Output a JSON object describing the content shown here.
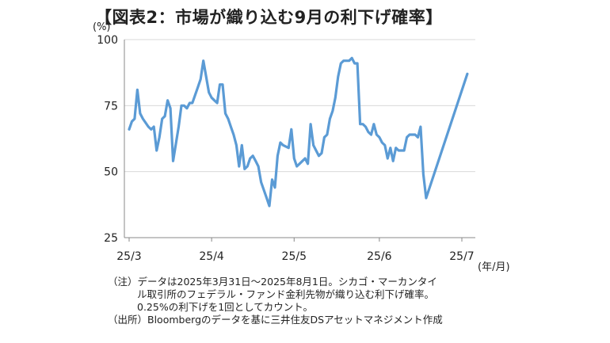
{
  "chart_data": {
    "type": "line",
    "title": "【図表2：市場が織り込む9月の利下げ確率】",
    "ylabel": "(%)",
    "xunit": "(年/月)",
    "ylim": [
      25,
      100
    ],
    "yticks": [
      25,
      50,
      75,
      100
    ],
    "x_tick_labels": [
      "25/3",
      "25/4",
      "25/5",
      "25/6",
      "25/7"
    ],
    "x_tick_dates": [
      "2025-03-31",
      "2025-04-30",
      "2025-05-30",
      "2025-06-30",
      "2025-07-30"
    ],
    "grid": "horizontal",
    "line_color": "#5b9bd5",
    "series": [
      {
        "name": "",
        "points": [
          [
            "2025-03-31",
            66
          ],
          [
            "2025-04-01",
            69
          ],
          [
            "2025-04-02",
            70
          ],
          [
            "2025-04-03",
            81
          ],
          [
            "2025-04-04",
            72
          ],
          [
            "2025-04-05",
            70
          ],
          [
            "2025-04-07",
            67
          ],
          [
            "2025-04-08",
            66
          ],
          [
            "2025-04-09",
            67
          ],
          [
            "2025-04-10",
            58
          ],
          [
            "2025-04-11",
            63
          ],
          [
            "2025-04-12",
            70
          ],
          [
            "2025-04-13",
            71
          ],
          [
            "2025-04-14",
            77
          ],
          [
            "2025-04-15",
            74
          ],
          [
            "2025-04-16",
            54
          ],
          [
            "2025-04-18",
            67
          ],
          [
            "2025-04-19",
            75
          ],
          [
            "2025-04-20",
            75
          ],
          [
            "2025-04-21",
            74
          ],
          [
            "2025-04-22",
            76
          ],
          [
            "2025-04-23",
            76
          ],
          [
            "2025-04-24",
            79
          ],
          [
            "2025-04-25",
            82
          ],
          [
            "2025-04-26",
            85
          ],
          [
            "2025-04-27",
            92
          ],
          [
            "2025-04-28",
            86
          ],
          [
            "2025-04-29",
            80
          ],
          [
            "2025-04-30",
            78
          ],
          [
            "2025-05-01",
            77
          ],
          [
            "2025-05-02",
            76
          ],
          [
            "2025-05-03",
            83
          ],
          [
            "2025-05-04",
            83
          ],
          [
            "2025-05-05",
            72
          ],
          [
            "2025-05-06",
            70
          ],
          [
            "2025-05-07",
            67
          ],
          [
            "2025-05-08",
            64
          ],
          [
            "2025-05-09",
            60
          ],
          [
            "2025-05-10",
            52
          ],
          [
            "2025-05-11",
            60
          ],
          [
            "2025-05-12",
            51
          ],
          [
            "2025-05-13",
            52
          ],
          [
            "2025-05-14",
            55
          ],
          [
            "2025-05-15",
            56
          ],
          [
            "2025-05-16",
            54
          ],
          [
            "2025-05-17",
            52
          ],
          [
            "2025-05-18",
            46
          ],
          [
            "2025-05-19",
            43
          ],
          [
            "2025-05-20",
            40
          ],
          [
            "2025-05-21",
            37
          ],
          [
            "2025-05-22",
            47
          ],
          [
            "2025-05-23",
            44
          ],
          [
            "2025-05-24",
            56
          ],
          [
            "2025-05-25",
            61
          ],
          [
            "2025-05-26",
            60
          ],
          [
            "2025-05-28",
            59
          ],
          [
            "2025-05-29",
            66
          ],
          [
            "2025-05-30",
            55
          ],
          [
            "2025-05-31",
            52
          ],
          [
            "2025-06-01",
            53
          ],
          [
            "2025-06-02",
            54
          ],
          [
            "2025-06-03",
            55
          ],
          [
            "2025-06-04",
            53
          ],
          [
            "2025-06-05",
            68
          ],
          [
            "2025-06-06",
            60
          ],
          [
            "2025-06-07",
            58
          ],
          [
            "2025-06-08",
            56
          ],
          [
            "2025-06-09",
            57
          ],
          [
            "2025-06-10",
            63
          ],
          [
            "2025-06-11",
            64
          ],
          [
            "2025-06-12",
            70
          ],
          [
            "2025-06-13",
            73
          ],
          [
            "2025-06-14",
            78
          ],
          [
            "2025-06-15",
            86
          ],
          [
            "2025-06-16",
            91
          ],
          [
            "2025-06-17",
            92
          ],
          [
            "2025-06-19",
            92
          ],
          [
            "2025-06-20",
            93
          ],
          [
            "2025-06-21",
            91
          ],
          [
            "2025-06-22",
            91
          ],
          [
            "2025-06-23",
            68
          ],
          [
            "2025-06-24",
            68
          ],
          [
            "2025-06-25",
            67
          ],
          [
            "2025-06-26",
            65
          ],
          [
            "2025-06-27",
            64
          ],
          [
            "2025-06-28",
            68
          ],
          [
            "2025-06-29",
            64
          ],
          [
            "2025-06-30",
            63
          ],
          [
            "2025-07-01",
            61
          ],
          [
            "2025-07-02",
            60
          ],
          [
            "2025-07-03",
            55
          ],
          [
            "2025-07-04",
            59
          ],
          [
            "2025-07-05",
            54
          ],
          [
            "2025-07-06",
            59
          ],
          [
            "2025-07-07",
            58
          ],
          [
            "2025-07-08",
            58
          ],
          [
            "2025-07-09",
            58
          ],
          [
            "2025-07-10",
            63
          ],
          [
            "2025-07-11",
            64
          ],
          [
            "2025-07-12",
            64
          ],
          [
            "2025-07-13",
            64
          ],
          [
            "2025-07-14",
            63
          ],
          [
            "2025-07-15",
            67
          ],
          [
            "2025-07-16",
            49
          ],
          [
            "2025-07-17",
            40
          ],
          [
            "2025-08-01",
            87
          ]
        ]
      }
    ]
  },
  "notes": {
    "line1": "（注）データは2025年3月31日～2025年8月1日。シカゴ・マーカンタイ",
    "line2": "ル取引所のフェデラル・ファンド金利先物が織り込む利下げ確率。",
    "line3": "0.25%の利下げを1回としてカウント。",
    "line4": "（出所）Bloombergのデータを基に三井住友DSアセットマネジメント作成"
  }
}
